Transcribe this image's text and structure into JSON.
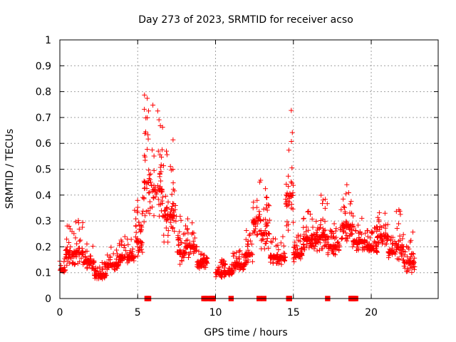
{
  "chart_data": {
    "type": "scatter",
    "title": "Day 273 of 2023, SRMTID for receiver acso",
    "xlabel": "GPS time / hours",
    "ylabel": "SRMTID / TECUs",
    "xlim": [
      0,
      24.3
    ],
    "ylim": [
      0,
      1
    ],
    "x_ticks": [
      "0",
      "5",
      "10",
      "15",
      "20"
    ],
    "y_ticks": [
      "0",
      "0.1",
      "0.2",
      "0.3",
      "0.4",
      "0.5",
      "0.6",
      "0.7",
      "0.8",
      "0.9",
      "1"
    ],
    "grid": true,
    "marker": "+",
    "color": "#ff0000",
    "segments": [
      {
        "x0": 0.0,
        "x1": 0.35,
        "base": 0.11,
        "amp": 0.05
      },
      {
        "x0": 0.35,
        "x1": 0.9,
        "base": 0.17,
        "amp": 0.12
      },
      {
        "x0": 0.9,
        "x1": 1.5,
        "base": 0.18,
        "amp": 0.14
      },
      {
        "x0": 1.5,
        "x1": 2.2,
        "base": 0.14,
        "amp": 0.08
      },
      {
        "x0": 2.2,
        "x1": 3.0,
        "base": 0.09,
        "amp": 0.05
      },
      {
        "x0": 3.0,
        "x1": 3.8,
        "base": 0.13,
        "amp": 0.07
      },
      {
        "x0": 3.8,
        "x1": 4.8,
        "base": 0.16,
        "amp": 0.08
      },
      {
        "x0": 4.8,
        "x1": 5.4,
        "base": 0.22,
        "amp": 0.18
      },
      {
        "x0": 5.4,
        "x1": 5.9,
        "base": 0.45,
        "amp": 0.45
      },
      {
        "x0": 5.9,
        "x1": 6.6,
        "base": 0.42,
        "amp": 0.33
      },
      {
        "x0": 6.6,
        "x1": 7.5,
        "base": 0.32,
        "amp": 0.3
      },
      {
        "x0": 7.5,
        "x1": 8.1,
        "base": 0.18,
        "amp": 0.14
      },
      {
        "x0": 8.1,
        "x1": 8.8,
        "base": 0.2,
        "amp": 0.12
      },
      {
        "x0": 8.8,
        "x1": 9.5,
        "base": 0.14,
        "amp": 0.07
      },
      {
        "x0": 10.0,
        "x1": 11.1,
        "base": 0.1,
        "amp": 0.05
      },
      {
        "x0": 11.1,
        "x1": 11.9,
        "base": 0.13,
        "amp": 0.06
      },
      {
        "x0": 11.9,
        "x1": 12.4,
        "base": 0.17,
        "amp": 0.1
      },
      {
        "x0": 12.4,
        "x1": 12.9,
        "base": 0.3,
        "amp": 0.2
      },
      {
        "x0": 12.9,
        "x1": 13.5,
        "base": 0.25,
        "amp": 0.18
      },
      {
        "x0": 13.5,
        "x1": 14.5,
        "base": 0.16,
        "amp": 0.08
      },
      {
        "x0": 14.5,
        "x1": 15.0,
        "base": 0.4,
        "amp": 0.45
      },
      {
        "x0": 15.0,
        "x1": 15.6,
        "base": 0.17,
        "amp": 0.08
      },
      {
        "x0": 15.6,
        "x1": 16.5,
        "base": 0.23,
        "amp": 0.12
      },
      {
        "x0": 16.5,
        "x1": 17.2,
        "base": 0.24,
        "amp": 0.16
      },
      {
        "x0": 17.2,
        "x1": 18.0,
        "base": 0.2,
        "amp": 0.09
      },
      {
        "x0": 18.0,
        "x1": 18.8,
        "base": 0.28,
        "amp": 0.17
      },
      {
        "x0": 18.8,
        "x1": 19.6,
        "base": 0.22,
        "amp": 0.1
      },
      {
        "x0": 19.6,
        "x1": 20.4,
        "base": 0.2,
        "amp": 0.08
      },
      {
        "x0": 20.4,
        "x1": 21.1,
        "base": 0.24,
        "amp": 0.1
      },
      {
        "x0": 21.1,
        "x1": 21.6,
        "base": 0.18,
        "amp": 0.07
      },
      {
        "x0": 21.6,
        "x1": 22.1,
        "base": 0.2,
        "amp": 0.15
      },
      {
        "x0": 22.1,
        "x1": 22.8,
        "base": 0.14,
        "amp": 0.12
      }
    ],
    "gap_markers_x": [
      5.6,
      5.7,
      9.25,
      9.35,
      9.45,
      9.7,
      9.75,
      9.8,
      9.85,
      11.0,
      12.8,
      13.1,
      14.7,
      14.75,
      17.2,
      18.7,
      18.75,
      18.8,
      18.85,
      18.9,
      19.0
    ]
  }
}
